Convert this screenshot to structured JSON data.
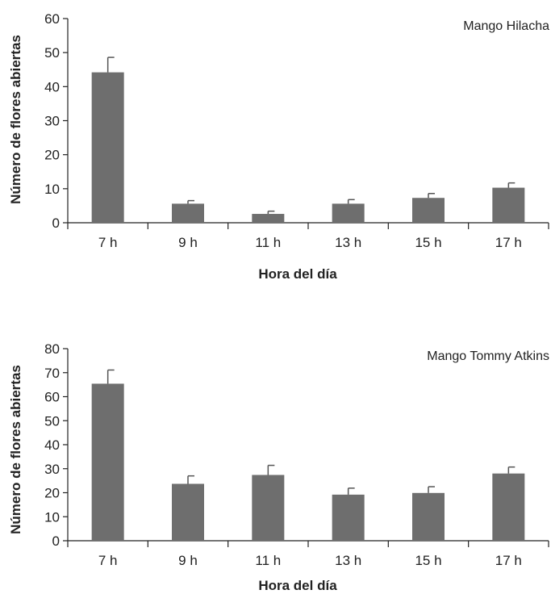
{
  "chart_data": [
    {
      "type": "bar",
      "annotation": "Mango Hilacha",
      "categories": [
        "7 h",
        "9 h",
        "11 h",
        "13 h",
        "15 h",
        "17 h"
      ],
      "values": [
        44.2,
        5.6,
        2.6,
        5.6,
        7.3,
        10.3
      ],
      "errors": [
        4.4,
        0.9,
        0.8,
        1.2,
        1.3,
        1.4
      ],
      "xlabel": "Hora del día",
      "ylabel": "Número de flores abiertas",
      "ylim": [
        0,
        60
      ],
      "yticks": [
        0,
        10,
        20,
        30,
        40,
        50,
        60
      ],
      "grid": false,
      "bar_color": "#6e6e6e"
    },
    {
      "type": "bar",
      "annotation": "Mango Tommy Atkins",
      "categories": [
        "7 h",
        "9 h",
        "11 h",
        "13 h",
        "15 h",
        "17 h"
      ],
      "values": [
        65.4,
        23.7,
        27.4,
        19.2,
        19.9,
        28.0
      ],
      "errors": [
        5.7,
        3.3,
        4.0,
        2.7,
        2.6,
        2.7
      ],
      "xlabel": "Hora del día",
      "ylabel": "Número de flores abiertas",
      "ylim": [
        0,
        80
      ],
      "yticks": [
        0,
        10,
        20,
        30,
        40,
        50,
        60,
        70,
        80
      ],
      "grid": false,
      "bar_color": "#6e6e6e"
    }
  ]
}
